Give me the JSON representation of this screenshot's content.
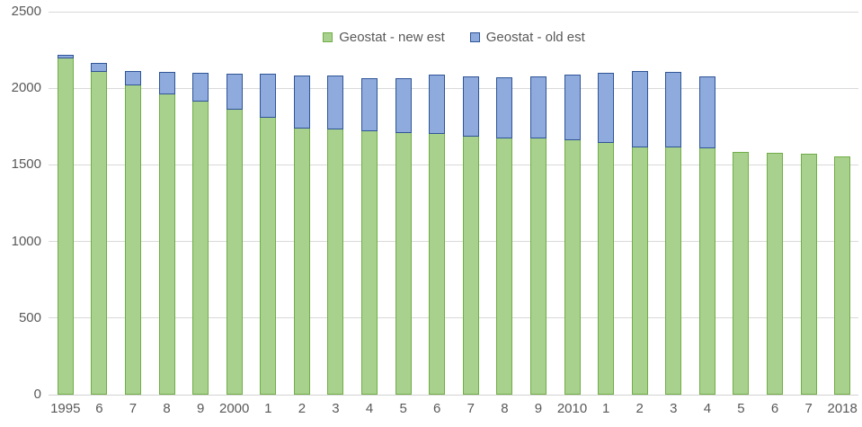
{
  "chart_data": {
    "type": "bar",
    "stacked": true,
    "title": "",
    "xlabel": "",
    "ylabel": "",
    "categories": [
      "1995",
      "6",
      "7",
      "8",
      "9",
      "2000",
      "1",
      "2",
      "3",
      "4",
      "5",
      "6",
      "7",
      "8",
      "9",
      "2010",
      "1",
      "2",
      "3",
      "4",
      "5",
      "6",
      "7",
      "2018"
    ],
    "series": [
      {
        "name": "Geostat - new est",
        "fill_color": "#a9d18e",
        "border_color": "#70ad47",
        "values": [
          2195,
          2105,
          2020,
          1960,
          1915,
          1860,
          1805,
          1740,
          1730,
          1720,
          1705,
          1700,
          1685,
          1675,
          1670,
          1660,
          1645,
          1615,
          1615,
          1610,
          1585,
          1580,
          1570,
          1555
        ]
      },
      {
        "name": "Geostat - old est",
        "fill_color": "#8faadc",
        "border_color": "#2f5597",
        "values": [
          25,
          60,
          95,
          145,
          190,
          235,
          285,
          345,
          350,
          345,
          360,
          390,
          395,
          400,
          405,
          430,
          460,
          500,
          495,
          470,
          0,
          0,
          0,
          0
        ]
      }
    ],
    "y_axis": {
      "min": 0,
      "max": 2500,
      "step": 500,
      "ticks": [
        "0",
        "500",
        "1000",
        "1500",
        "2000",
        "2500"
      ]
    },
    "grid": true,
    "legend_position": "top",
    "gridline_color": "#d9d9d9",
    "axis_text_color": "#595959"
  }
}
